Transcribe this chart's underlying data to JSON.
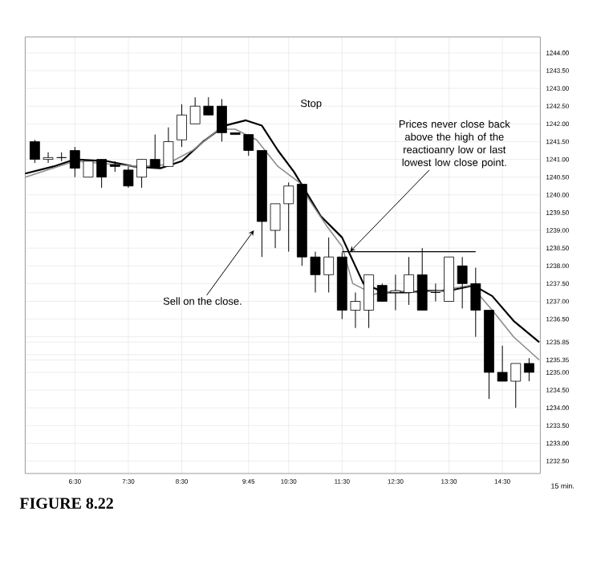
{
  "chart_data": {
    "type": "candlestick",
    "x": [
      5.75,
      6.0,
      6.25,
      6.5,
      6.75,
      7.0,
      7.25,
      7.5,
      7.75,
      8.0,
      8.25,
      8.5,
      8.75,
      9.0,
      9.25,
      9.5,
      9.75,
      10.0,
      10.25,
      10.5,
      10.75,
      11.0,
      11.25,
      11.5,
      11.75,
      12.0,
      12.25,
      12.5,
      12.75,
      13.0,
      13.25,
      13.5,
      13.75,
      14.0,
      14.25,
      14.5,
      14.75,
      15.0
    ],
    "ohlc": [
      [
        1241.5,
        1241.55,
        1240.9,
        1241.0
      ],
      [
        1241.0,
        1241.2,
        1240.9,
        1241.05
      ],
      [
        1241.05,
        1241.2,
        1240.95,
        1241.05
      ],
      [
        1241.25,
        1241.35,
        1240.5,
        1240.75
      ],
      [
        1240.5,
        1240.95,
        1240.5,
        1240.95
      ],
      [
        1241.0,
        1241.0,
        1240.2,
        1240.5
      ],
      [
        1240.85,
        1240.95,
        1240.65,
        1240.8
      ],
      [
        1240.7,
        1240.8,
        1240.2,
        1240.25
      ],
      [
        1240.5,
        1241.0,
        1240.2,
        1241.0
      ],
      [
        1241.0,
        1241.7,
        1240.75,
        1240.75
      ],
      [
        1240.8,
        1241.9,
        1240.8,
        1241.5
      ],
      [
        1241.55,
        1242.55,
        1241.35,
        1242.25
      ],
      [
        1242.0,
        1242.75,
        1242.0,
        1242.5
      ],
      [
        1242.5,
        1242.75,
        1242.25,
        1242.25
      ],
      [
        1242.5,
        1242.7,
        1241.5,
        1241.75
      ],
      [
        1241.75,
        1241.75,
        1241.7,
        1241.7
      ],
      [
        1241.7,
        1241.7,
        1241.1,
        1241.25
      ],
      [
        1241.25,
        1241.25,
        1238.25,
        1239.25
      ],
      [
        1239.0,
        1239.75,
        1238.5,
        1239.75
      ],
      [
        1239.75,
        1240.35,
        1238.4,
        1240.25
      ],
      [
        1240.3,
        1240.3,
        1238.0,
        1238.25
      ],
      [
        1238.25,
        1238.4,
        1237.25,
        1237.75
      ],
      [
        1237.75,
        1238.8,
        1237.25,
        1238.25
      ],
      [
        1238.25,
        1238.38,
        1236.5,
        1236.75
      ],
      [
        1236.75,
        1237.25,
        1236.25,
        1237.0
      ],
      [
        1236.75,
        1237.75,
        1236.25,
        1237.75
      ],
      [
        1237.45,
        1237.5,
        1237.0,
        1237.0
      ],
      [
        1237.25,
        1237.75,
        1236.75,
        1237.3
      ],
      [
        1237.25,
        1238.25,
        1236.9,
        1237.75
      ],
      [
        1237.75,
        1238.5,
        1236.75,
        1236.75
      ],
      [
        1237.25,
        1237.5,
        1237.0,
        1237.25
      ],
      [
        1237.0,
        1238.25,
        1237.0,
        1238.25
      ],
      [
        1238.0,
        1238.25,
        1236.8,
        1237.5
      ],
      [
        1237.5,
        1237.95,
        1236.0,
        1236.75
      ],
      [
        1236.75,
        1236.75,
        1234.25,
        1235.0
      ],
      [
        1235.0,
        1235.75,
        1234.75,
        1234.75
      ],
      [
        1234.75,
        1235.25,
        1234.0,
        1235.25
      ],
      [
        1235.25,
        1235.4,
        1234.75,
        1235.0
      ]
    ],
    "series": [
      {
        "type": "line",
        "color": "#000000",
        "x": [
          5.57,
          6.1,
          6.5,
          7.1,
          7.6,
          8.1,
          8.5,
          8.9,
          9.3,
          9.7,
          10.0,
          10.3,
          10.6,
          11.1,
          11.5,
          11.9,
          12.3,
          12.7,
          13.1,
          13.5,
          13.96,
          14.31,
          14.71,
          15.19
        ],
        "values": [
          1240.6,
          1240.8,
          1241.0,
          1240.95,
          1240.8,
          1240.75,
          1240.95,
          1241.5,
          1241.95,
          1242.1,
          1241.95,
          1241.25,
          1240.65,
          1239.4,
          1238.8,
          1237.5,
          1237.25,
          1237.25,
          1237.3,
          1237.3,
          1237.45,
          1237.15,
          1236.45,
          1235.85
        ]
      },
      {
        "type": "line",
        "color": "#8c8c8c",
        "x": [
          5.57,
          6.5,
          7.7,
          8.2,
          8.7,
          9.2,
          9.5,
          9.9,
          10.3,
          10.7,
          10.8,
          11.2,
          11.5,
          11.7,
          12.1,
          12.5,
          12.9,
          13.3,
          13.91,
          14.31,
          14.71,
          15.19
        ],
        "values": [
          1240.5,
          1240.95,
          1240.8,
          1240.85,
          1241.25,
          1241.85,
          1241.85,
          1241.55,
          1240.8,
          1240.35,
          1240.05,
          1239.15,
          1238.55,
          1237.5,
          1237.2,
          1237.3,
          1237.25,
          1237.3,
          1237.45,
          1236.75,
          1236.0,
          1235.35
        ]
      },
      {
        "type": "line",
        "color": "#000000",
        "x": [
          11.5,
          14.0
        ],
        "values": [
          1238.4,
          1238.4
        ]
      }
    ],
    "xlim": [
      5.57,
      15.21
    ],
    "ylim": [
      1232.15,
      1244.45
    ],
    "xticks": [
      {
        "value": 6.5,
        "label": "6:30"
      },
      {
        "value": 7.5,
        "label": "7:30"
      },
      {
        "value": 8.5,
        "label": "8:30"
      },
      {
        "value": 9.75,
        "label": "9:45"
      },
      {
        "value": 10.5,
        "label": "10:30"
      },
      {
        "value": 11.5,
        "label": "11:30"
      },
      {
        "value": 12.5,
        "label": "12:30"
      },
      {
        "value": 13.5,
        "label": "13:30"
      },
      {
        "value": 14.5,
        "label": "14:30"
      }
    ],
    "yticks": [
      {
        "value": 1232.5,
        "label": "1232.50"
      },
      {
        "value": 1233.0,
        "label": "1233.00"
      },
      {
        "value": 1233.5,
        "label": "1233.50"
      },
      {
        "value": 1234.0,
        "label": "1234.00"
      },
      {
        "value": 1234.5,
        "label": "1234.50"
      },
      {
        "value": 1235.0,
        "label": "1235.00"
      },
      {
        "value": 1235.35,
        "label": "1235.35"
      },
      {
        "value": 1235.5,
        "label": null
      },
      {
        "value": 1235.85,
        "label": "1235.85"
      },
      {
        "value": 1236.0,
        "label": null
      },
      {
        "value": 1236.5,
        "label": "1236.50"
      },
      {
        "value": 1237.0,
        "label": "1237.00"
      },
      {
        "value": 1237.5,
        "label": "1237.50"
      },
      {
        "value": 1238.0,
        "label": "1238.00"
      },
      {
        "value": 1238.5,
        "label": "1238.50"
      },
      {
        "value": 1239.0,
        "label": "1239.00"
      },
      {
        "value": 1239.5,
        "label": "1239.50"
      },
      {
        "value": 1240.0,
        "label": "1240.00"
      },
      {
        "value": 1240.5,
        "label": "1240.50"
      },
      {
        "value": 1241.0,
        "label": "1241.00"
      },
      {
        "value": 1241.5,
        "label": "1241.50"
      },
      {
        "value": 1242.0,
        "label": "1242.00"
      },
      {
        "value": 1242.5,
        "label": "1242.50"
      },
      {
        "value": 1243.0,
        "label": "1243.00"
      },
      {
        "value": 1243.5,
        "label": "1243.50"
      },
      {
        "value": 1244.0,
        "label": "1244.00"
      }
    ],
    "xlabel": "15 min.",
    "grid": true,
    "annotations": [
      "Stop",
      {
        "text": "Sell on the close.",
        "x": 9.85,
        "y": 1239.0
      },
      {
        "text": "Prices never close back above the high of the reactioanry low or last lowest low close point.",
        "x": 11.65,
        "y": 1238.4
      },
      "FIGURE 8.22"
    ]
  }
}
